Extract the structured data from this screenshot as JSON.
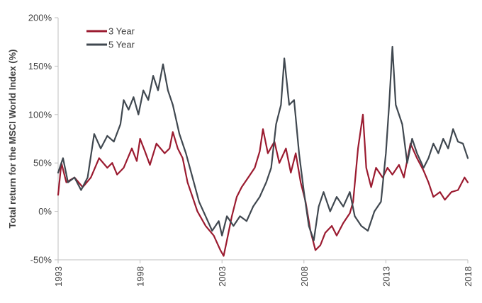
{
  "chart_data": {
    "type": "line",
    "title": "",
    "xlabel": "",
    "ylabel": "Total return for the MSCI World Index (%)",
    "xlim": [
      1993,
      2018
    ],
    "ylim": [
      -50,
      200
    ],
    "x_ticks": [
      "1993",
      "1998",
      "2003",
      "2008",
      "2013",
      "2018"
    ],
    "y_ticks": [
      "-50%",
      "0%",
      "50%",
      "100%",
      "150%",
      "200%"
    ],
    "grid": false,
    "legend_position": "top-left",
    "series": [
      {
        "name": "3 Year",
        "color": "#9b1b30",
        "points": [
          [
            1993.0,
            17
          ],
          [
            1993.2,
            50
          ],
          [
            1993.5,
            30
          ],
          [
            1994.0,
            35
          ],
          [
            1994.5,
            25
          ],
          [
            1995.0,
            35
          ],
          [
            1995.5,
            55
          ],
          [
            1996.0,
            45
          ],
          [
            1996.3,
            50
          ],
          [
            1996.6,
            38
          ],
          [
            1997.0,
            45
          ],
          [
            1997.5,
            65
          ],
          [
            1997.8,
            52
          ],
          [
            1998.0,
            75
          ],
          [
            1998.3,
            62
          ],
          [
            1998.6,
            48
          ],
          [
            1999.0,
            70
          ],
          [
            1999.5,
            60
          ],
          [
            1999.8,
            65
          ],
          [
            2000.0,
            82
          ],
          [
            2000.3,
            65
          ],
          [
            2000.6,
            55
          ],
          [
            2000.9,
            30
          ],
          [
            2001.2,
            15
          ],
          [
            2001.5,
            0
          ],
          [
            2002.0,
            -15
          ],
          [
            2002.5,
            -25
          ],
          [
            2002.9,
            -40
          ],
          [
            2003.1,
            -46
          ],
          [
            2003.3,
            -30
          ],
          [
            2003.6,
            -5
          ],
          [
            2003.9,
            15
          ],
          [
            2004.2,
            25
          ],
          [
            2004.6,
            35
          ],
          [
            2005.0,
            45
          ],
          [
            2005.3,
            62
          ],
          [
            2005.5,
            85
          ],
          [
            2005.8,
            60
          ],
          [
            2006.2,
            72
          ],
          [
            2006.5,
            50
          ],
          [
            2006.9,
            65
          ],
          [
            2007.2,
            40
          ],
          [
            2007.5,
            60
          ],
          [
            2007.8,
            30
          ],
          [
            2008.1,
            10
          ],
          [
            2008.4,
            -20
          ],
          [
            2008.7,
            -40
          ],
          [
            2009.0,
            -35
          ],
          [
            2009.3,
            -22
          ],
          [
            2009.7,
            -15
          ],
          [
            2010.0,
            -25
          ],
          [
            2010.4,
            -12
          ],
          [
            2010.8,
            -2
          ],
          [
            2011.0,
            10
          ],
          [
            2011.3,
            65
          ],
          [
            2011.6,
            100
          ],
          [
            2011.8,
            45
          ],
          [
            2012.1,
            25
          ],
          [
            2012.4,
            45
          ],
          [
            2012.8,
            35
          ],
          [
            2013.1,
            45
          ],
          [
            2013.4,
            38
          ],
          [
            2013.8,
            48
          ],
          [
            2014.1,
            35
          ],
          [
            2014.5,
            70
          ],
          [
            2014.9,
            55
          ],
          [
            2015.3,
            42
          ],
          [
            2015.6,
            30
          ],
          [
            2015.9,
            15
          ],
          [
            2016.3,
            20
          ],
          [
            2016.6,
            12
          ],
          [
            2017.0,
            20
          ],
          [
            2017.4,
            22
          ],
          [
            2017.8,
            35
          ],
          [
            2018.0,
            30
          ]
        ]
      },
      {
        "name": "5 Year",
        "color": "#404850",
        "points": [
          [
            1993.0,
            40
          ],
          [
            1993.3,
            55
          ],
          [
            1993.6,
            30
          ],
          [
            1994.0,
            35
          ],
          [
            1994.4,
            22
          ],
          [
            1994.8,
            35
          ],
          [
            1995.2,
            80
          ],
          [
            1995.6,
            65
          ],
          [
            1996.0,
            78
          ],
          [
            1996.4,
            72
          ],
          [
            1996.8,
            90
          ],
          [
            1997.0,
            115
          ],
          [
            1997.3,
            105
          ],
          [
            1997.6,
            118
          ],
          [
            1997.9,
            100
          ],
          [
            1998.2,
            125
          ],
          [
            1998.5,
            115
          ],
          [
            1998.8,
            140
          ],
          [
            1999.1,
            125
          ],
          [
            1999.4,
            152
          ],
          [
            1999.7,
            125
          ],
          [
            2000.0,
            110
          ],
          [
            2000.4,
            80
          ],
          [
            2000.8,
            60
          ],
          [
            2001.2,
            35
          ],
          [
            2001.6,
            10
          ],
          [
            2002.0,
            -5
          ],
          [
            2002.4,
            -20
          ],
          [
            2002.8,
            -10
          ],
          [
            2003.0,
            -25
          ],
          [
            2003.3,
            -5
          ],
          [
            2003.7,
            -15
          ],
          [
            2004.1,
            -5
          ],
          [
            2004.5,
            -10
          ],
          [
            2004.9,
            5
          ],
          [
            2005.3,
            15
          ],
          [
            2005.7,
            30
          ],
          [
            2006.0,
            45
          ],
          [
            2006.3,
            90
          ],
          [
            2006.6,
            110
          ],
          [
            2006.8,
            158
          ],
          [
            2007.1,
            110
          ],
          [
            2007.4,
            115
          ],
          [
            2007.7,
            60
          ],
          [
            2008.0,
            20
          ],
          [
            2008.3,
            -15
          ],
          [
            2008.6,
            -30
          ],
          [
            2008.9,
            5
          ],
          [
            2009.2,
            20
          ],
          [
            2009.6,
            0
          ],
          [
            2010.0,
            15
          ],
          [
            2010.4,
            5
          ],
          [
            2010.8,
            20
          ],
          [
            2011.1,
            -5
          ],
          [
            2011.5,
            -15
          ],
          [
            2011.9,
            -20
          ],
          [
            2012.3,
            0
          ],
          [
            2012.7,
            10
          ],
          [
            2013.0,
            60
          ],
          [
            2013.2,
            110
          ],
          [
            2013.4,
            170
          ],
          [
            2013.6,
            110
          ],
          [
            2014.0,
            90
          ],
          [
            2014.3,
            50
          ],
          [
            2014.6,
            75
          ],
          [
            2014.9,
            60
          ],
          [
            2015.3,
            45
          ],
          [
            2015.6,
            55
          ],
          [
            2015.9,
            70
          ],
          [
            2016.2,
            60
          ],
          [
            2016.5,
            75
          ],
          [
            2016.8,
            65
          ],
          [
            2017.1,
            85
          ],
          [
            2017.4,
            72
          ],
          [
            2017.7,
            70
          ],
          [
            2018.0,
            55
          ]
        ]
      }
    ]
  }
}
